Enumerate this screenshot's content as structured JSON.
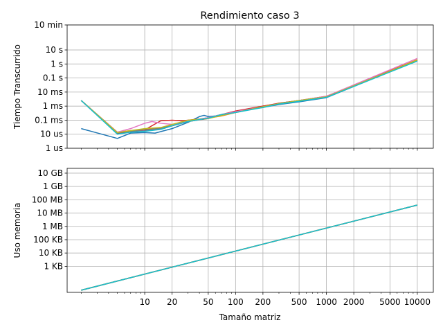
{
  "title": "Rendimiento caso 3",
  "xlabel": "Tamaño matriz",
  "chart_data": [
    {
      "type": "line",
      "title": "Rendimiento caso 3",
      "xlabel": "",
      "ylabel": "Tiempo Transcurrido",
      "xscale": "log",
      "yscale": "log",
      "xlim": [
        1.4,
        15000
      ],
      "ylim": [
        1e-06,
        600
      ],
      "grid": true,
      "y_ticks": [
        {
          "value": 1e-06,
          "label": "1 us"
        },
        {
          "value": 1e-05,
          "label": "10 us"
        },
        {
          "value": 0.0001,
          "label": "0.1 ms"
        },
        {
          "value": 0.001,
          "label": "1 ms"
        },
        {
          "value": 0.01,
          "label": "10 ms"
        },
        {
          "value": 0.1,
          "label": "0.1 s"
        },
        {
          "value": 1,
          "label": "1 s"
        },
        {
          "value": 10,
          "label": "10 s"
        },
        {
          "value": 600,
          "label": "10 min"
        }
      ],
      "series": [
        {
          "color": "#1f77b4",
          "x": [
            2,
            5,
            7,
            10,
            13,
            20,
            30,
            40,
            45,
            50,
            60,
            80,
            100,
            200,
            300,
            500,
            1000,
            10000
          ],
          "y": [
            2.5e-05,
            5e-06,
            1.2e-05,
            1.3e-05,
            1.2e-05,
            2.5e-05,
            7e-05,
            0.00018,
            0.00022,
            0.00018,
            0.0002,
            0.0003,
            0.0004,
            0.0008,
            0.0013,
            0.002,
            0.004,
            1.8
          ]
        },
        {
          "color": "#ff7f0e",
          "x": [
            2,
            5,
            7,
            10,
            15,
            20,
            30,
            50,
            70,
            100,
            200,
            300,
            500,
            1000,
            10000
          ],
          "y": [
            0.0025,
            1.4e-05,
            1.8e-05,
            2.2e-05,
            2.8e-05,
            4e-05,
            8e-05,
            0.00014,
            0.0002,
            0.00035,
            0.001,
            0.0015,
            0.0025,
            0.005,
            2
          ]
        },
        {
          "color": "#2ca02c",
          "x": [
            2,
            5,
            7,
            10,
            15,
            20,
            30,
            50,
            70,
            100,
            200,
            300,
            500,
            1000,
            10000
          ],
          "y": [
            0.0025,
            1.1e-05,
            1.5e-05,
            1.8e-05,
            2.2e-05,
            4e-05,
            9e-05,
            0.00015,
            0.00025,
            0.0004,
            0.0009,
            0.0016,
            0.0025,
            0.0045,
            1.9
          ]
        },
        {
          "color": "#d62728",
          "x": [
            2,
            5,
            7,
            10,
            12,
            15,
            20,
            25,
            30,
            50,
            70,
            100,
            200,
            300,
            500,
            1000,
            10000
          ],
          "y": [
            0.0025,
            1.2e-05,
            1.6e-05,
            2e-05,
            4e-05,
            9e-05,
            0.0001,
            9e-05,
            0.0001,
            0.00014,
            0.00025,
            0.00045,
            0.001,
            0.0016,
            0.0025,
            0.005,
            1.9
          ]
        },
        {
          "color": "#9467bd",
          "x": [
            2,
            5,
            7,
            10,
            15,
            20,
            30,
            50,
            70,
            100,
            200,
            300,
            500,
            1000,
            10000
          ],
          "y": [
            0.0025,
            1.2e-05,
            1.6e-05,
            1.9e-05,
            2.5e-05,
            4e-05,
            8e-05,
            0.00015,
            0.00025,
            0.0004,
            0.0009,
            0.0015,
            0.0025,
            0.0045,
            1.8
          ]
        },
        {
          "color": "#8c564b",
          "x": [
            2,
            5,
            7,
            10,
            15,
            20,
            30,
            50,
            70,
            100,
            200,
            300,
            500,
            1000,
            10000
          ],
          "y": [
            0.0025,
            1.2e-05,
            1.6e-05,
            2e-05,
            2.7e-05,
            4e-05,
            8e-05,
            0.00013,
            0.00025,
            0.00035,
            0.0009,
            0.0014,
            0.0025,
            0.0045,
            1.8
          ]
        },
        {
          "color": "#e377c2",
          "x": [
            2,
            5,
            7,
            10,
            12,
            15,
            20,
            30,
            50,
            70,
            100,
            200,
            300,
            500,
            1000,
            10000
          ],
          "y": [
            0.0025,
            1.4e-05,
            2.5e-05,
            6e-05,
            8e-05,
            6e-05,
            5e-05,
            9e-05,
            0.00015,
            0.00025,
            0.0004,
            0.0009,
            0.0015,
            0.0025,
            0.005,
            2.5
          ]
        },
        {
          "color": "#7f7f7f",
          "x": [
            2,
            5,
            7,
            10,
            15,
            20,
            30,
            50,
            70,
            100,
            200,
            300,
            500,
            1000,
            10000
          ],
          "y": [
            0.0025,
            1.3e-05,
            1.7e-05,
            2e-05,
            2.6e-05,
            4e-05,
            8e-05,
            0.00014,
            0.00022,
            0.00035,
            0.0009,
            0.0015,
            0.0025,
            0.0045,
            1.8
          ]
        },
        {
          "color": "#bcbd22",
          "x": [
            2,
            5,
            7,
            10,
            15,
            20,
            30,
            50,
            70,
            100,
            200,
            300,
            500,
            1000,
            10000
          ],
          "y": [
            0.0025,
            1.3e-05,
            1.8e-05,
            2.5e-05,
            3e-05,
            5e-05,
            0.0001,
            0.00013,
            0.00022,
            0.00035,
            0.0009,
            0.0015,
            0.0025,
            0.0045,
            1.9
          ]
        },
        {
          "color": "#17becf",
          "x": [
            2,
            5,
            7,
            10,
            15,
            20,
            30,
            50,
            70,
            100,
            200,
            300,
            500,
            1000,
            10000
          ],
          "y": [
            0.0025,
            1e-05,
            1.4e-05,
            1.6e-05,
            2.2e-05,
            4e-05,
            8e-05,
            0.00014,
            0.00025,
            0.00035,
            0.0008,
            0.0014,
            0.0022,
            0.0042,
            1.6
          ]
        }
      ]
    },
    {
      "type": "line",
      "title": "",
      "xlabel": "Tamaño matriz",
      "ylabel": "Uso memoria",
      "xscale": "log",
      "yscale": "log",
      "xlim": [
        1.4,
        15000
      ],
      "ylim": [
        11,
        23000000000
      ],
      "grid": true,
      "x_ticks": [
        10,
        20,
        50,
        100,
        200,
        500,
        1000,
        2000,
        5000,
        10000
      ],
      "y_ticks": [
        {
          "value": 1000,
          "label": "1 KB"
        },
        {
          "value": 10000,
          "label": "10 KB"
        },
        {
          "value": 100000,
          "label": "100 KB"
        },
        {
          "value": 1000000,
          "label": "1 MB"
        },
        {
          "value": 10000000,
          "label": "10 MB"
        },
        {
          "value": 100000000,
          "label": "100 MB"
        },
        {
          "value": 1000000000,
          "label": "1 GB"
        },
        {
          "value": 10000000000,
          "label": "10 GB"
        }
      ],
      "series": [
        {
          "color": "#1f77b4",
          "x": [
            2,
            10000
          ],
          "y": [
            16,
            40000000
          ]
        },
        {
          "color": "#ff7f0e",
          "x": [
            2,
            10000
          ],
          "y": [
            16,
            40000000
          ]
        },
        {
          "color": "#2ca02c",
          "x": [
            2,
            10000
          ],
          "y": [
            16,
            40000000
          ]
        },
        {
          "color": "#d62728",
          "x": [
            2,
            10000
          ],
          "y": [
            16,
            40000000
          ]
        },
        {
          "color": "#9467bd",
          "x": [
            2,
            10000
          ],
          "y": [
            16,
            40000000
          ]
        },
        {
          "color": "#8c564b",
          "x": [
            2,
            10000
          ],
          "y": [
            16,
            40000000
          ]
        },
        {
          "color": "#e377c2",
          "x": [
            2,
            10000
          ],
          "y": [
            16,
            40000000
          ]
        },
        {
          "color": "#7f7f7f",
          "x": [
            2,
            10000
          ],
          "y": [
            16,
            40000000
          ]
        },
        {
          "color": "#bcbd22",
          "x": [
            2,
            10000
          ],
          "y": [
            16,
            40000000
          ]
        },
        {
          "color": "#17becf",
          "x": [
            2,
            10000
          ],
          "y": [
            16,
            40000000
          ]
        }
      ]
    }
  ]
}
